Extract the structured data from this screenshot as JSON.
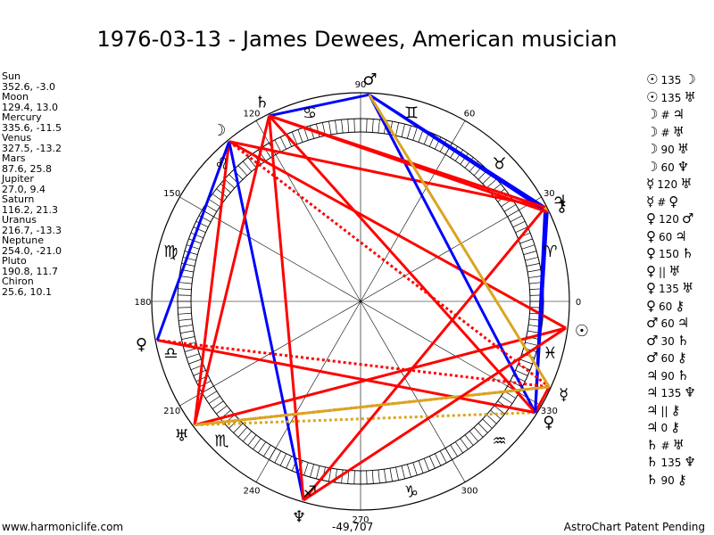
{
  "title": "1976-03-13 - James Dewees, American musician",
  "planets": [
    {
      "name": "Sun",
      "coords": "352.6, -3.0"
    },
    {
      "name": "Moon",
      "coords": "129.4, 13.0"
    },
    {
      "name": "Mercury",
      "coords": "335.6, -11.5"
    },
    {
      "name": "Venus",
      "coords": "327.5, -13.2"
    },
    {
      "name": "Mars",
      "coords": "87.6, 25.8"
    },
    {
      "name": "Jupiter",
      "coords": "27.0, 9.4"
    },
    {
      "name": "Saturn",
      "coords": "116.2, 21.3"
    },
    {
      "name": "Uranus",
      "coords": "216.7, -13.3"
    },
    {
      "name": "Neptune",
      "coords": "254.0, -21.0"
    },
    {
      "name": "Pluto",
      "coords": "190.8, 11.7"
    },
    {
      "name": "Chiron",
      "coords": "25.6, 10.1"
    }
  ],
  "aspects": [
    {
      "a": "☉",
      "n": "135",
      "b": "☽"
    },
    {
      "a": "☉",
      "n": "135",
      "b": "♅"
    },
    {
      "a": "☽",
      "n": "#",
      "b": "♃"
    },
    {
      "a": "☽",
      "n": "#",
      "b": "♅"
    },
    {
      "a": "☽",
      "n": "90",
      "b": "♅"
    },
    {
      "a": "☽",
      "n": "60",
      "b": "♆"
    },
    {
      "a": "☿",
      "n": "120",
      "b": "♅"
    },
    {
      "a": "☿",
      "n": "#",
      "b": "♀"
    },
    {
      "a": "♀",
      "n": "120",
      "b": "♂"
    },
    {
      "a": "♀",
      "n": "60",
      "b": "♃"
    },
    {
      "a": "♀",
      "n": "150",
      "b": "♄"
    },
    {
      "a": "♀",
      "n": "||",
      "b": "♅"
    },
    {
      "a": "♀",
      "n": "135",
      "b": "♅"
    },
    {
      "a": "♀",
      "n": "60",
      "b": "⚷"
    },
    {
      "a": "♂",
      "n": "60",
      "b": "♃"
    },
    {
      "a": "♂",
      "n": "30",
      "b": "♄"
    },
    {
      "a": "♂",
      "n": "60",
      "b": "⚷"
    },
    {
      "a": "♃",
      "n": "90",
      "b": "♄"
    },
    {
      "a": "♃",
      "n": "135",
      "b": "♆"
    },
    {
      "a": "♃",
      "n": "||",
      "b": "⚷"
    },
    {
      "a": "♃",
      "n": "0",
      "b": "⚷"
    },
    {
      "a": "♄",
      "n": "#",
      "b": "♅"
    },
    {
      "a": "♄",
      "n": "135",
      "b": "♆"
    },
    {
      "a": "♄",
      "n": "90",
      "b": "⚷"
    }
  ],
  "wheel": {
    "degree_labels": [
      {
        "deg": 0,
        "label": "0"
      },
      {
        "deg": 30,
        "label": "30"
      },
      {
        "deg": 60,
        "label": "60"
      },
      {
        "deg": 90,
        "label": "90"
      },
      {
        "deg": 120,
        "label": "120"
      },
      {
        "deg": 150,
        "label": "150"
      },
      {
        "deg": 180,
        "label": "180"
      },
      {
        "deg": 210,
        "label": "210"
      },
      {
        "deg": 240,
        "label": "240"
      },
      {
        "deg": 270,
        "label": "270"
      },
      {
        "deg": 300,
        "label": "300"
      },
      {
        "deg": 330,
        "label": "330"
      }
    ],
    "signs": [
      {
        "name": "aries",
        "glyph": "♈",
        "deg": 15
      },
      {
        "name": "taurus",
        "glyph": "♉",
        "deg": 45
      },
      {
        "name": "gemini",
        "glyph": "♊",
        "deg": 75
      },
      {
        "name": "cancer",
        "glyph": "♋",
        "deg": 105
      },
      {
        "name": "leo",
        "glyph": "♌",
        "deg": 135
      },
      {
        "name": "virgo",
        "glyph": "♍",
        "deg": 165
      },
      {
        "name": "libra",
        "glyph": "♎",
        "deg": 195
      },
      {
        "name": "scorpio",
        "glyph": "♏",
        "deg": 225
      },
      {
        "name": "sagittarius",
        "glyph": "♐",
        "deg": 255
      },
      {
        "name": "capricorn",
        "glyph": "♑",
        "deg": 285
      },
      {
        "name": "aquarius",
        "glyph": "♒",
        "deg": 315
      },
      {
        "name": "pisces",
        "glyph": "♓",
        "deg": 345
      }
    ],
    "planet_glyphs": [
      {
        "name": "sun",
        "glyph": "☉",
        "deg": 352.6
      },
      {
        "name": "moon",
        "glyph": "☽",
        "deg": 129.4
      },
      {
        "name": "mercury",
        "glyph": "☿",
        "deg": 335.6
      },
      {
        "name": "venus",
        "glyph": "♀",
        "deg": 327.5
      },
      {
        "name": "mars",
        "glyph": "♂",
        "deg": 87.6
      },
      {
        "name": "jupiter",
        "glyph": "♃",
        "deg": 27.0
      },
      {
        "name": "saturn",
        "glyph": "♄",
        "deg": 116.2
      },
      {
        "name": "uranus",
        "glyph": "♅",
        "deg": 216.7
      },
      {
        "name": "neptune",
        "glyph": "♆",
        "deg": 254.0
      },
      {
        "name": "pluto",
        "glyph": "♀",
        "deg": 190.8
      },
      {
        "name": "chiron",
        "glyph": "⚷",
        "deg": 25.6
      }
    ],
    "aspect_lines": [
      {
        "from": 352.6,
        "to": 129.4,
        "color": "#ff0000",
        "style": "solid"
      },
      {
        "from": 352.6,
        "to": 216.7,
        "color": "#ff0000",
        "style": "solid"
      },
      {
        "from": 129.4,
        "to": 27.0,
        "color": "#ff0000",
        "style": "solid"
      },
      {
        "from": 129.4,
        "to": 216.7,
        "color": "#ff0000",
        "style": "solid"
      },
      {
        "from": 129.4,
        "to": 254.0,
        "color": "#0000ff",
        "style": "solid"
      },
      {
        "from": 335.6,
        "to": 216.7,
        "color": "#ff0000",
        "style": "dotted"
      },
      {
        "from": 335.6,
        "to": 327.5,
        "color": "#ff0000",
        "style": "solid"
      },
      {
        "from": 327.5,
        "to": 87.6,
        "color": "#0000ff",
        "style": "solid"
      },
      {
        "from": 327.5,
        "to": 27.0,
        "color": "#0000ff",
        "style": "solid"
      },
      {
        "from": 327.5,
        "to": 116.2,
        "color": "#ff0000",
        "style": "solid"
      },
      {
        "from": 327.5,
        "to": 216.7,
        "color": "#daa520",
        "style": "dotted"
      },
      {
        "from": 327.5,
        "to": 190.8,
        "color": "#ff0000",
        "style": "solid"
      },
      {
        "from": 327.5,
        "to": 25.6,
        "color": "#0000ff",
        "style": "solid"
      },
      {
        "from": 87.6,
        "to": 27.0,
        "color": "#0000ff",
        "style": "solid"
      },
      {
        "from": 87.6,
        "to": 116.2,
        "color": "#0000ff",
        "style": "solid"
      },
      {
        "from": 87.6,
        "to": 25.6,
        "color": "#0000ff",
        "style": "solid"
      },
      {
        "from": 27.0,
        "to": 116.2,
        "color": "#ff0000",
        "style": "solid"
      },
      {
        "from": 27.0,
        "to": 254.0,
        "color": "#ff0000",
        "style": "solid"
      },
      {
        "from": 27.0,
        "to": 25.6,
        "color": "#daa520",
        "style": "solid"
      },
      {
        "from": 116.2,
        "to": 216.7,
        "color": "#ff0000",
        "style": "solid"
      },
      {
        "from": 116.2,
        "to": 254.0,
        "color": "#ff0000",
        "style": "solid"
      },
      {
        "from": 116.2,
        "to": 25.6,
        "color": "#ff0000",
        "style": "solid"
      },
      {
        "from": 190.8,
        "to": 335.6,
        "color": "#ff0000",
        "style": "dotted"
      },
      {
        "from": 129.4,
        "to": 335.6,
        "color": "#ff0000",
        "style": "dotted"
      },
      {
        "from": 87.6,
        "to": 335.6,
        "color": "#daa520",
        "style": "solid"
      },
      {
        "from": 216.7,
        "to": 335.6,
        "color": "#daa520",
        "style": "solid"
      },
      {
        "from": 190.8,
        "to": 129.4,
        "color": "#0000ff",
        "style": "solid"
      },
      {
        "from": 254.0,
        "to": 352.6,
        "color": "#ff0000",
        "style": "solid"
      }
    ]
  },
  "footer": {
    "left": "www.harmoniclife.com",
    "center": "-49,707",
    "right": "AstroChart Patent Pending"
  }
}
